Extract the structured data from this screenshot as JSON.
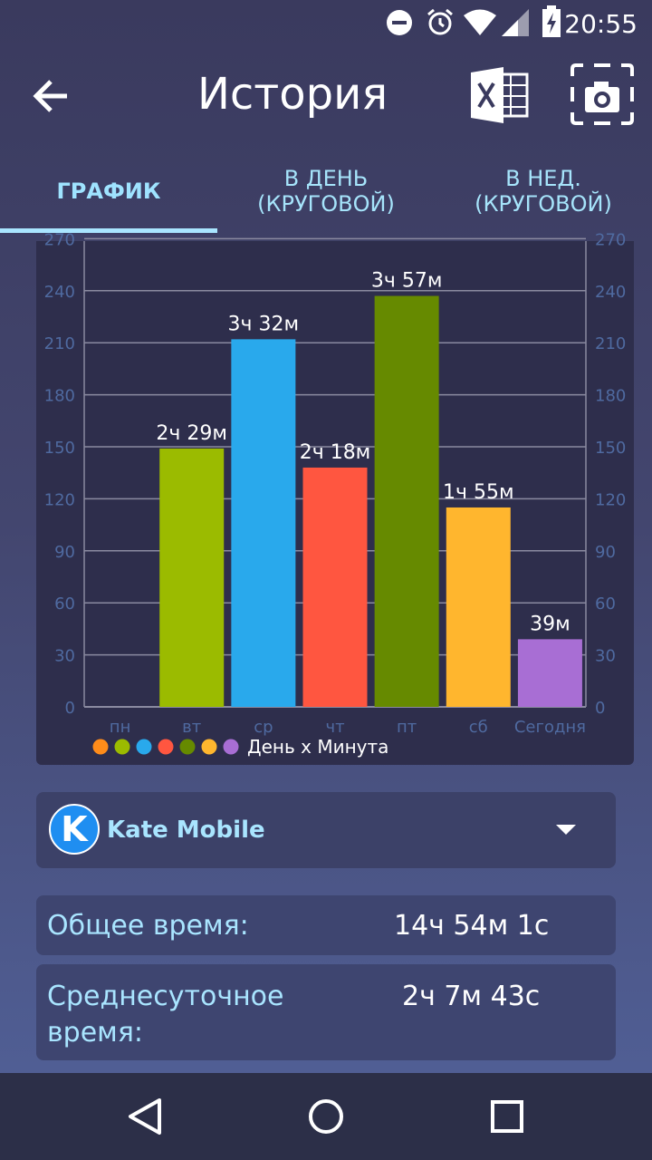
{
  "status_bar": {
    "time": "20:55",
    "icons": [
      "dnd-icon",
      "alarm-icon",
      "wifi-icon",
      "signal-icon",
      "battery-charging-icon"
    ]
  },
  "app_bar": {
    "title": "История",
    "back_icon": "arrow-left-icon",
    "excel_icon": "excel-export-icon",
    "screenshot_icon": "screenshot-camera-icon"
  },
  "tabs": [
    {
      "label": "ГРАФИК",
      "active": true
    },
    {
      "label": "В ДЕНЬ\n(КРУГОВОЙ)",
      "active": false
    },
    {
      "label": "В НЕД.\n(КРУГОВОЙ)",
      "active": false
    }
  ],
  "chart_data": {
    "type": "bar",
    "categories": [
      "пн",
      "вт",
      "ср",
      "чт",
      "пт",
      "сб",
      "Сегодня"
    ],
    "values": [
      0,
      149,
      212,
      138,
      237,
      115,
      39
    ],
    "data_labels": [
      "",
      "2ч 29м",
      "3ч 32м",
      "2ч 18м",
      "3ч 57м",
      "1ч 55м",
      "39м"
    ],
    "colors": [
      "#ff8c1a",
      "#9bbb00",
      "#29a9ec",
      "#ff5640",
      "#668a00",
      "#ffb62e",
      "#a86ed4"
    ],
    "y_ticks": [
      0,
      30,
      60,
      90,
      120,
      150,
      180,
      210,
      240,
      270
    ],
    "ylim": [
      0,
      270
    ],
    "legend": "День х Минута",
    "legend_position": "bottom-left",
    "grid": true,
    "dual_y_axis": true
  },
  "app_selector": {
    "logo_letter": "K",
    "name": "Kate Mobile",
    "icon": "chevron-down-icon"
  },
  "stats": {
    "total_label": "Общее время:",
    "total_value": "14ч 54м 1с",
    "avg_label": "Среднесуточное время:",
    "avg_value": "2ч 7м 43с"
  },
  "nav": {
    "back_icon": "nav-back-icon",
    "home_icon": "nav-home-icon",
    "recents_icon": "nav-recents-icon"
  },
  "colors": {
    "accent": "#a9e5ff",
    "card": "#2e2e4c",
    "grid": "#8a8aa0",
    "axis_text": "#4f6aa0"
  }
}
